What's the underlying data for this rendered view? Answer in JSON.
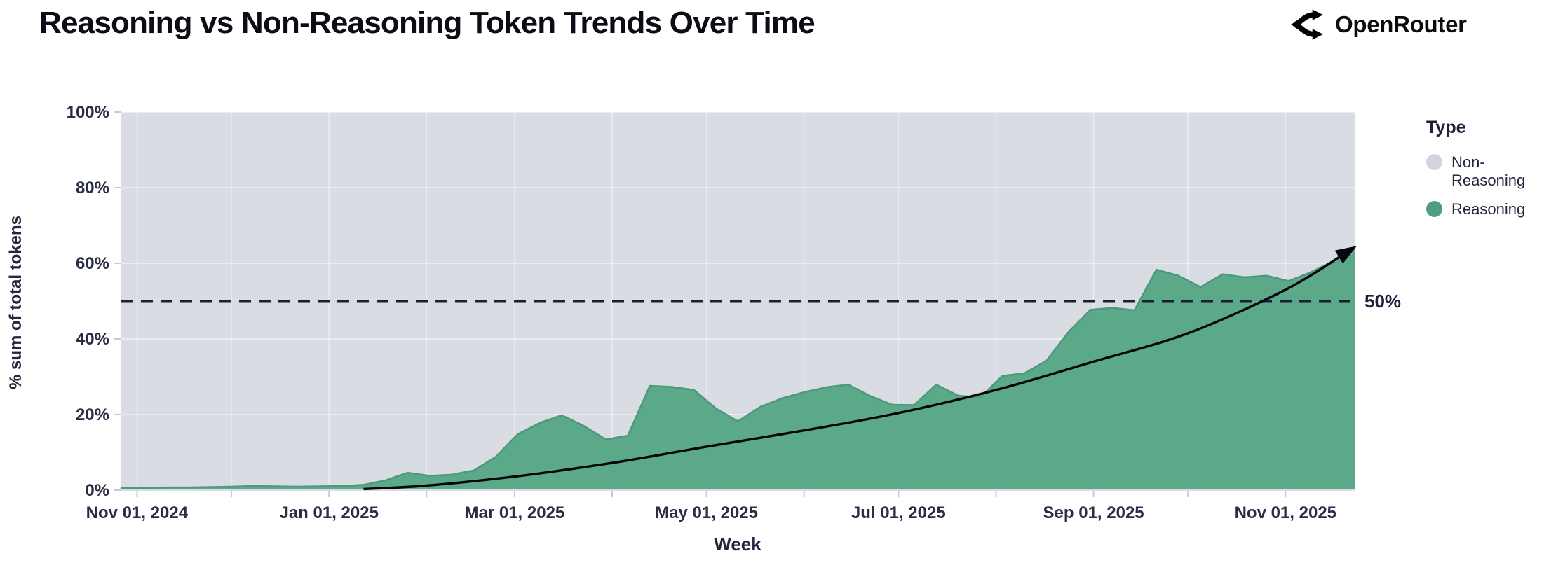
{
  "header": {
    "title": "Reasoning vs Non-Reasoning Token Trends Over Time",
    "brand": "OpenRouter"
  },
  "chart_data": {
    "type": "area",
    "stacked_percent": true,
    "title": "Reasoning vs Non-Reasoning Token Trends Over Time",
    "xlabel": "Week",
    "ylabel": "% sum of total tokens",
    "ylim": [
      0,
      100
    ],
    "grid": true,
    "legend_position": "right",
    "x_domain": [
      "2024-10-27",
      "2025-11-23"
    ],
    "colors": {
      "non_reasoning": "#d9dce3",
      "reasoning_fill": "#5ca98a",
      "reasoning_stroke": "#4a9b7b",
      "gridline": "rgba(255,255,255,0.6)",
      "tick": "#c6cad6",
      "dashed_line": "#1b1e33",
      "trend_line": "#06070c",
      "text": "#23263c"
    },
    "yticks": [
      {
        "value": 0,
        "label": "0%"
      },
      {
        "value": 20,
        "label": "20%"
      },
      {
        "value": 40,
        "label": "40%"
      },
      {
        "value": 60,
        "label": "60%"
      },
      {
        "value": 80,
        "label": "80%"
      },
      {
        "value": 100,
        "label": "100%"
      }
    ],
    "xticks": [
      {
        "date": "2024-11-01",
        "label": "Nov 01, 2024"
      },
      {
        "date": "2024-12-01",
        "label": ""
      },
      {
        "date": "2025-01-01",
        "label": "Jan 01, 2025"
      },
      {
        "date": "2025-02-01",
        "label": ""
      },
      {
        "date": "2025-03-01",
        "label": "Mar 01, 2025"
      },
      {
        "date": "2025-04-01",
        "label": ""
      },
      {
        "date": "2025-05-01",
        "label": "May 01, 2025"
      },
      {
        "date": "2025-06-01",
        "label": ""
      },
      {
        "date": "2025-07-01",
        "label": "Jul 01, 2025"
      },
      {
        "date": "2025-08-01",
        "label": ""
      },
      {
        "date": "2025-09-01",
        "label": "Sep 01, 2025"
      },
      {
        "date": "2025-10-01",
        "label": ""
      },
      {
        "date": "2025-11-01",
        "label": "Nov 01, 2025"
      }
    ],
    "series": [
      {
        "name": "Non-Reasoning",
        "role": "background-remainder",
        "color": "#d9dce3"
      },
      {
        "name": "Reasoning",
        "color": "#5ca98a",
        "stroke": "#4a9b7b",
        "weeks": [
          "2024-10-27",
          "2024-11-03",
          "2024-11-10",
          "2024-11-17",
          "2024-11-24",
          "2024-12-01",
          "2024-12-08",
          "2024-12-15",
          "2024-12-22",
          "2024-12-29",
          "2025-01-05",
          "2025-01-12",
          "2025-01-19",
          "2025-01-26",
          "2025-02-02",
          "2025-02-09",
          "2025-02-16",
          "2025-02-23",
          "2025-03-02",
          "2025-03-09",
          "2025-03-16",
          "2025-03-23",
          "2025-03-30",
          "2025-04-06",
          "2025-04-13",
          "2025-04-20",
          "2025-04-27",
          "2025-05-04",
          "2025-05-11",
          "2025-05-18",
          "2025-05-25",
          "2025-06-01",
          "2025-06-08",
          "2025-06-15",
          "2025-06-22",
          "2025-06-29",
          "2025-07-06",
          "2025-07-13",
          "2025-07-20",
          "2025-07-27",
          "2025-08-03",
          "2025-08-10",
          "2025-08-17",
          "2025-08-24",
          "2025-08-31",
          "2025-09-07",
          "2025-09-14",
          "2025-09-21",
          "2025-09-28",
          "2025-10-05",
          "2025-10-12",
          "2025-10-19",
          "2025-10-26",
          "2025-11-02",
          "2025-11-09",
          "2025-11-16",
          "2025-11-23"
        ],
        "values": [
          0.5,
          0.6,
          0.7,
          0.7,
          0.8,
          0.9,
          1.1,
          1.0,
          0.9,
          1.0,
          1.1,
          1.4,
          2.6,
          4.6,
          3.8,
          4.1,
          5.2,
          8.8,
          14.8,
          17.8,
          19.8,
          17.0,
          13.4,
          14.4,
          27.6,
          27.3,
          26.5,
          21.6,
          18.2,
          22.0,
          24.3,
          25.9,
          27.2,
          27.9,
          24.9,
          22.6,
          22.5,
          27.9,
          25.0,
          24.5,
          30.2,
          30.9,
          34.2,
          41.8,
          47.7,
          48.2,
          47.6,
          58.3,
          56.7,
          53.7,
          57.1,
          56.3,
          56.7,
          55.3,
          57.6,
          60.5,
          63.8
        ]
      }
    ],
    "reference_line": {
      "value": 50,
      "label": "50%"
    },
    "trend_arrow": {
      "description": "black curved arrow showing exponential growth of reasoning share",
      "points": [
        [
          "2025-01-12",
          0.3
        ],
        [
          "2025-02-01",
          1.2
        ],
        [
          "2025-03-01",
          3.6
        ],
        [
          "2025-04-01",
          7.2
        ],
        [
          "2025-05-01",
          11.5
        ],
        [
          "2025-06-01",
          15.8
        ],
        [
          "2025-07-01",
          20.4
        ],
        [
          "2025-08-01",
          26.5
        ],
        [
          "2025-09-01",
          34.0
        ],
        [
          "2025-10-01",
          41.5
        ],
        [
          "2025-11-01",
          53.0
        ],
        [
          "2025-11-21",
          63.2
        ]
      ]
    },
    "legend": {
      "title": "Type",
      "items": [
        {
          "label": "Non-Reasoning",
          "color": "#d2d5de"
        },
        {
          "label": "Reasoning",
          "color": "#4f9e80"
        }
      ]
    }
  }
}
